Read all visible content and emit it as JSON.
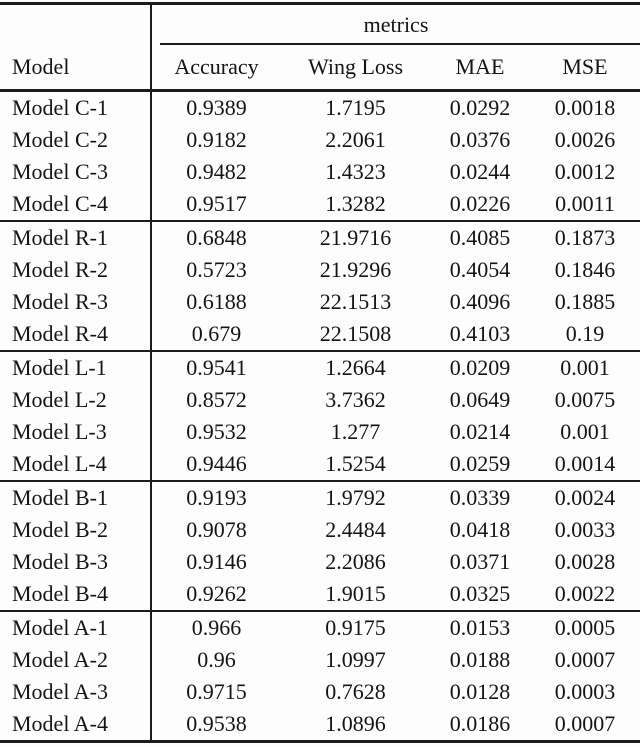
{
  "colors": {
    "background": "#fdfdfd",
    "text": "#141414",
    "rule": "#1b1b1b"
  },
  "table": {
    "spanner_label": "metrics",
    "model_column_header": "Model",
    "metric_headers": [
      "Accuracy",
      "Wing Loss",
      "MAE",
      "MSE"
    ],
    "groups": [
      {
        "rows": [
          {
            "model": "Model C-1",
            "values": [
              "0.9389",
              "1.7195",
              "0.0292",
              "0.0018"
            ]
          },
          {
            "model": "Model C-2",
            "values": [
              "0.9182",
              "2.2061",
              "0.0376",
              "0.0026"
            ]
          },
          {
            "model": "Model C-3",
            "values": [
              "0.9482",
              "1.4323",
              "0.0244",
              "0.0012"
            ]
          },
          {
            "model": "Model C-4",
            "values": [
              "0.9517",
              "1.3282",
              "0.0226",
              "0.0011"
            ]
          }
        ]
      },
      {
        "rows": [
          {
            "model": "Model R-1",
            "values": [
              "0.6848",
              "21.9716",
              "0.4085",
              "0.1873"
            ]
          },
          {
            "model": "Model R-2",
            "values": [
              "0.5723",
              "21.9296",
              "0.4054",
              "0.1846"
            ]
          },
          {
            "model": "Model R-3",
            "values": [
              "0.6188",
              "22.1513",
              "0.4096",
              "0.1885"
            ]
          },
          {
            "model": "Model R-4",
            "values": [
              "0.679",
              "22.1508",
              "0.4103",
              "0.19"
            ]
          }
        ]
      },
      {
        "rows": [
          {
            "model": "Model L-1",
            "values": [
              "0.9541",
              "1.2664",
              "0.0209",
              "0.001"
            ]
          },
          {
            "model": "Model L-2",
            "values": [
              "0.8572",
              "3.7362",
              "0.0649",
              "0.0075"
            ]
          },
          {
            "model": "Model L-3",
            "values": [
              "0.9532",
              "1.277",
              "0.0214",
              "0.001"
            ]
          },
          {
            "model": "Model L-4",
            "values": [
              "0.9446",
              "1.5254",
              "0.0259",
              "0.0014"
            ]
          }
        ]
      },
      {
        "rows": [
          {
            "model": "Model B-1",
            "values": [
              "0.9193",
              "1.9792",
              "0.0339",
              "0.0024"
            ]
          },
          {
            "model": "Model B-2",
            "values": [
              "0.9078",
              "2.4484",
              "0.0418",
              "0.0033"
            ]
          },
          {
            "model": "Model B-3",
            "values": [
              "0.9146",
              "2.2086",
              "0.0371",
              "0.0028"
            ]
          },
          {
            "model": "Model B-4",
            "values": [
              "0.9262",
              "1.9015",
              "0.0325",
              "0.0022"
            ]
          }
        ]
      },
      {
        "rows": [
          {
            "model": "Model A-1",
            "values": [
              "0.966",
              "0.9175",
              "0.0153",
              "0.0005"
            ]
          },
          {
            "model": "Model A-2",
            "values": [
              "0.96",
              "1.0997",
              "0.0188",
              "0.0007"
            ]
          },
          {
            "model": "Model A-3",
            "values": [
              "0.9715",
              "0.7628",
              "0.0128",
              "0.0003"
            ]
          },
          {
            "model": "Model A-4",
            "values": [
              "0.9538",
              "1.0896",
              "0.0186",
              "0.0007"
            ]
          }
        ]
      }
    ]
  }
}
